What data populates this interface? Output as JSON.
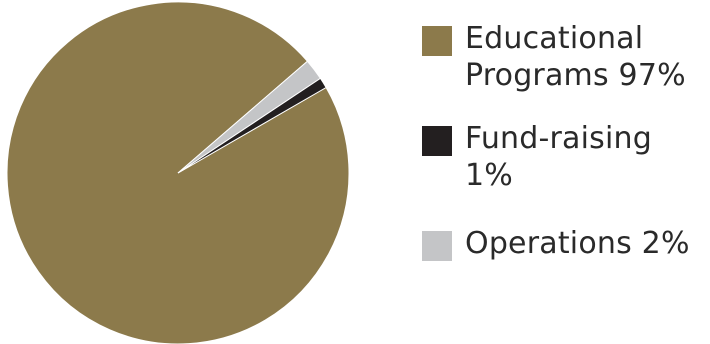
{
  "chart_data": {
    "type": "pie",
    "title": "",
    "slices": [
      {
        "label": "Educational Programs 97%",
        "value": 97,
        "color": "#8c7a4b"
      },
      {
        "label": "Fund-raising 1%",
        "value": 1,
        "color": "#231f20"
      },
      {
        "label": "Operations 2%",
        "value": 2,
        "color": "#c4c5c7"
      }
    ],
    "legend_position": "right"
  }
}
